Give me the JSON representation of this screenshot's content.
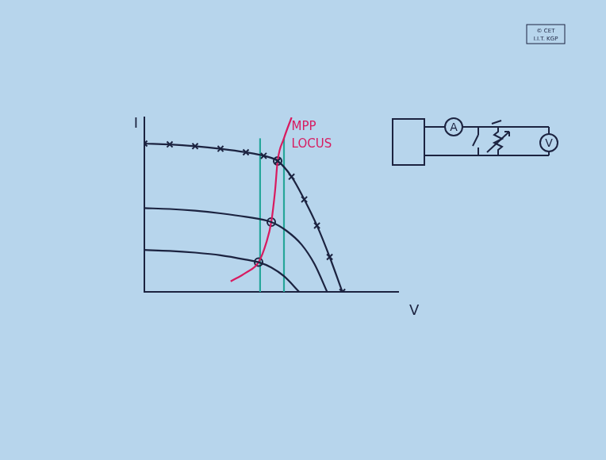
{
  "chart_data": {
    "type": "line",
    "x_label": "V",
    "y_label": "I",
    "xlim": [
      0,
      10
    ],
    "ylim": [
      0,
      10
    ],
    "tick_labels": false,
    "grid": false,
    "annotations": [
      {
        "text": "MPP",
        "x": 5.8,
        "y": 9.45,
        "color": "#d81b60"
      },
      {
        "text": "LOCUS",
        "x": 5.8,
        "y": 8.45,
        "color": "#d81b60"
      }
    ],
    "series": [
      {
        "color": "#1c2340",
        "marker": "cross",
        "line_style": "solid",
        "x": [
          0,
          1,
          2,
          3,
          4,
          4.7,
          5.25,
          5.8,
          6.3,
          6.8,
          7.3,
          7.8
        ],
        "values": [
          8.5,
          8.45,
          8.35,
          8.2,
          8.0,
          7.8,
          7.5,
          6.6,
          5.3,
          3.8,
          2.0,
          0
        ]
      },
      {
        "color": "#1c2340",
        "marker": "none",
        "line_style": "solid",
        "x": [
          0,
          1,
          2,
          3,
          4,
          5,
          5.6,
          6.2,
          6.7,
          7.2
        ],
        "values": [
          4.8,
          4.75,
          4.65,
          4.5,
          4.3,
          4.0,
          3.5,
          2.7,
          1.6,
          0
        ]
      },
      {
        "color": "#1c2340",
        "marker": "none",
        "line_style": "solid",
        "x": [
          0,
          1,
          2,
          3,
          4,
          4.5,
          5,
          5.5,
          6.1
        ],
        "values": [
          2.4,
          2.35,
          2.25,
          2.1,
          1.85,
          1.7,
          1.4,
          0.9,
          0
        ]
      },
      {
        "color": "#d81b60",
        "marker": "none",
        "line_style": "solid",
        "x": [
          3.4,
          4.0,
          4.5,
          4.8,
          5.0,
          5.15,
          5.25,
          5.5,
          5.8
        ],
        "values": [
          0.6,
          1.1,
          1.7,
          2.8,
          4.0,
          5.8,
          7.5,
          8.8,
          10
        ]
      },
      {
        "color": "#1c2340",
        "marker": "circle",
        "line_style": "none",
        "x": [
          4.5,
          5.0,
          5.25
        ],
        "values": [
          1.7,
          4.0,
          7.5
        ]
      },
      {
        "color": "#26a69a",
        "marker": "none",
        "line_style": "solid",
        "x": [
          4.56,
          4.56
        ],
        "values": [
          0,
          8.8
        ]
      },
      {
        "color": "#26a69a",
        "marker": "none",
        "line_style": "solid",
        "x": [
          5.5,
          5.5
        ],
        "values": [
          0,
          8.8
        ]
      }
    ]
  },
  "circuit": {
    "ammeter": "A",
    "voltmeter": "V"
  },
  "stamp": [
    "© CET",
    "I.I.T. KGP"
  ]
}
